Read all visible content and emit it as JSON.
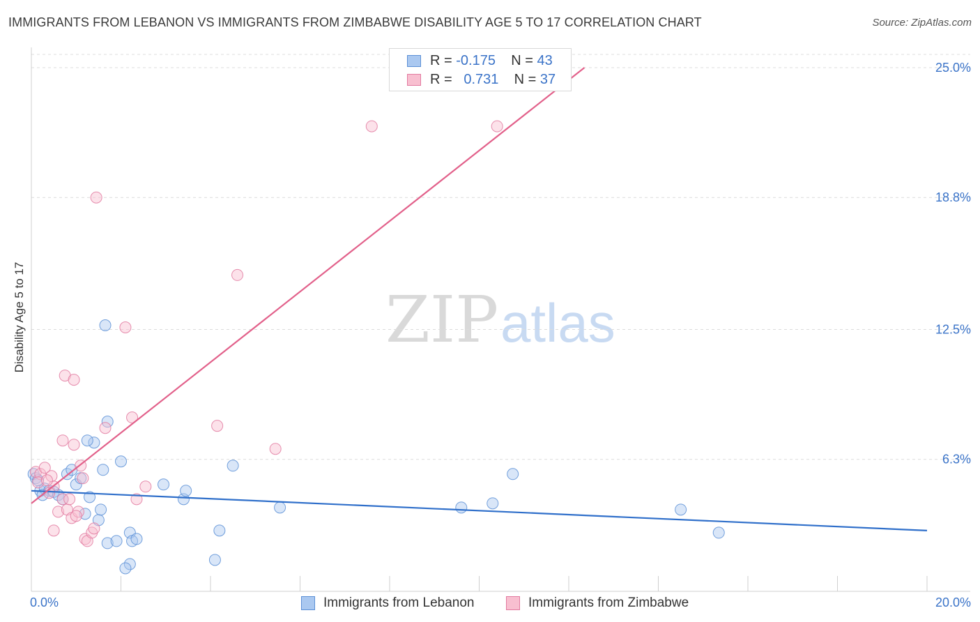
{
  "title": "IMMIGRANTS FROM LEBANON VS IMMIGRANTS FROM ZIMBABWE DISABILITY AGE 5 TO 17 CORRELATION CHART",
  "source": "Source: ZipAtlas.com",
  "watermark": {
    "part1": "ZIP",
    "part2": "atlas"
  },
  "legend": {
    "rows": [
      {
        "r_label": "R =",
        "r_value": "-0.175",
        "n_label": "N =",
        "n_value": "43",
        "fill": "#aac8f0",
        "stroke": "#5b8fd6"
      },
      {
        "r_label": "R =",
        "r_value": "0.731",
        "n_label": "N =",
        "n_value": "37",
        "fill": "#f8bfd0",
        "stroke": "#e27aa0"
      }
    ]
  },
  "bottom_legend": [
    {
      "label": "Immigrants from Lebanon",
      "fill": "#aac8f0",
      "stroke": "#5b8fd6"
    },
    {
      "label": "Immigrants from Zimbabwe",
      "fill": "#f8bfd0",
      "stroke": "#e27aa0"
    }
  ],
  "chart_data": {
    "type": "scatter",
    "title": "IMMIGRANTS FROM LEBANON VS IMMIGRANTS FROM ZIMBABWE DISABILITY AGE 5 TO 17 CORRELATION CHART",
    "xlabel": "",
    "ylabel": "Disability Age 5 to 17",
    "xlim": [
      0,
      20
    ],
    "ylim": [
      0,
      25
    ],
    "x_tick_labels": [
      {
        "value": 0,
        "label": "0.0%"
      },
      {
        "value": 20,
        "label": "20.0%"
      }
    ],
    "y_tick_labels": [
      {
        "value": 6.3,
        "label": "6.3%"
      },
      {
        "value": 12.5,
        "label": "12.5%"
      },
      {
        "value": 18.8,
        "label": "18.8%"
      },
      {
        "value": 25.0,
        "label": "25.0%"
      }
    ],
    "x_minor_ticks": [
      0,
      2,
      4,
      6,
      8,
      10,
      12,
      14,
      16,
      18,
      20
    ],
    "grid": "horizontal dashed",
    "legend_position": "top-center",
    "series": [
      {
        "name": "Immigrants from Lebanon",
        "color": "#5b8fd6",
        "fill": "#aac8f0",
        "trend": {
          "x0": 0,
          "y0": 4.8,
          "x1": 20,
          "y1": 2.9,
          "color": "#2f6fca"
        },
        "points": [
          [
            0.05,
            5.6
          ],
          [
            0.1,
            5.4
          ],
          [
            0.15,
            5.3
          ],
          [
            0.2,
            4.8
          ],
          [
            0.3,
            4.9
          ],
          [
            0.4,
            4.8
          ],
          [
            0.5,
            4.75
          ],
          [
            0.6,
            4.6
          ],
          [
            0.7,
            4.4
          ],
          [
            0.8,
            5.6
          ],
          [
            0.9,
            5.8
          ],
          [
            1.0,
            5.1
          ],
          [
            1.1,
            5.4
          ],
          [
            1.2,
            3.7
          ],
          [
            1.3,
            4.5
          ],
          [
            1.4,
            7.1
          ],
          [
            1.25,
            7.2
          ],
          [
            1.5,
            3.4
          ],
          [
            1.55,
            3.9
          ],
          [
            1.6,
            5.8
          ],
          [
            1.7,
            2.3
          ],
          [
            1.65,
            12.7
          ],
          [
            1.7,
            8.1
          ],
          [
            1.9,
            2.4
          ],
          [
            2.0,
            6.2
          ],
          [
            2.2,
            2.8
          ],
          [
            2.25,
            2.4
          ],
          [
            2.35,
            2.5
          ],
          [
            2.2,
            1.3
          ],
          [
            2.1,
            1.1
          ],
          [
            2.95,
            5.1
          ],
          [
            3.4,
            4.4
          ],
          [
            3.45,
            4.8
          ],
          [
            4.1,
            1.5
          ],
          [
            4.2,
            2.9
          ],
          [
            4.5,
            6.0
          ],
          [
            5.55,
            4.0
          ],
          [
            9.6,
            4.0
          ],
          [
            10.3,
            4.2
          ],
          [
            10.75,
            5.6
          ],
          [
            14.5,
            3.9
          ],
          [
            15.35,
            2.8
          ],
          [
            0.25,
            4.6
          ]
        ]
      },
      {
        "name": "Immigrants from Zimbabwe",
        "color": "#e27aa0",
        "fill": "#f8bfd0",
        "trend": {
          "x0": 0,
          "y0": 4.2,
          "x1": 12.35,
          "y1": 25,
          "color": "#e2608a"
        },
        "points": [
          [
            0.1,
            5.7
          ],
          [
            0.2,
            5.6
          ],
          [
            0.3,
            5.9
          ],
          [
            0.45,
            5.5
          ],
          [
            0.5,
            5.0
          ],
          [
            0.5,
            2.9
          ],
          [
            0.6,
            3.8
          ],
          [
            0.7,
            4.4
          ],
          [
            0.7,
            7.2
          ],
          [
            0.75,
            10.3
          ],
          [
            0.8,
            3.9
          ],
          [
            0.85,
            4.4
          ],
          [
            0.9,
            3.5
          ],
          [
            0.95,
            7.0
          ],
          [
            0.95,
            10.1
          ],
          [
            1.05,
            3.8
          ],
          [
            1.1,
            6.0
          ],
          [
            1.15,
            5.4
          ],
          [
            1.2,
            2.5
          ],
          [
            1.25,
            2.4
          ],
          [
            1.35,
            2.8
          ],
          [
            1.4,
            3.0
          ],
          [
            1.45,
            18.8
          ],
          [
            1.65,
            7.8
          ],
          [
            2.1,
            12.6
          ],
          [
            2.25,
            8.3
          ],
          [
            2.35,
            4.4
          ],
          [
            2.55,
            5.0
          ],
          [
            4.15,
            7.9
          ],
          [
            4.6,
            15.1
          ],
          [
            5.45,
            6.8
          ],
          [
            7.6,
            22.2
          ],
          [
            10.4,
            22.2
          ],
          [
            0.15,
            5.2
          ],
          [
            0.35,
            5.3
          ],
          [
            1.0,
            3.6
          ],
          [
            0.4,
            4.7
          ]
        ]
      }
    ]
  }
}
